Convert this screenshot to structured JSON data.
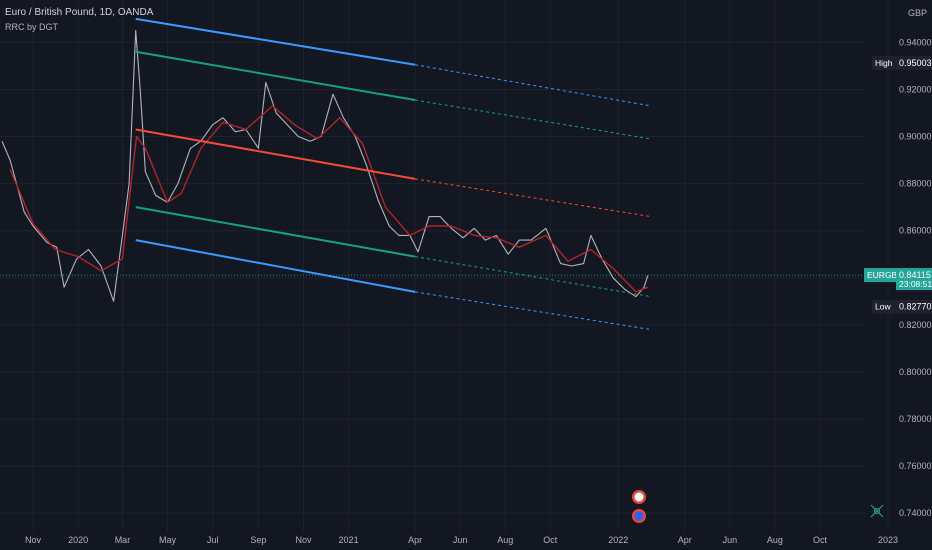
{
  "header": {
    "symbol_line": "Euro / British Pound, 1D, OANDA",
    "indicator_line": "RRC by DGT"
  },
  "chart_data": {
    "type": "line",
    "title": "Euro / British Pound, 1D, OANDA",
    "ylabel": "",
    "xlabel": "",
    "currency": "GBP",
    "ylim": [
      0.732,
      0.958
    ],
    "y_ticks": [
      "0.94000",
      "0.92000",
      "0.90000",
      "0.88000",
      "0.86000",
      "0.84000",
      "0.82000",
      "0.80000",
      "0.78000",
      "0.76000",
      "0.74000"
    ],
    "y_tick_values": [
      0.94,
      0.92,
      0.9,
      0.88,
      0.86,
      0.84,
      0.82,
      0.8,
      0.78,
      0.76,
      0.74
    ],
    "x_ticks": [
      "Nov",
      "2020",
      "Mar",
      "May",
      "Jul",
      "Sep",
      "Nov",
      "2021",
      "Apr",
      "Jun",
      "Aug",
      "Oct",
      "2022",
      "Apr",
      "Jun",
      "Aug",
      "Oct",
      "2023"
    ],
    "x_tick_dates": [
      "2019-11-01",
      "2020-01-01",
      "2020-03-01",
      "2020-05-01",
      "2020-07-01",
      "2020-09-01",
      "2020-11-01",
      "2021-01-01",
      "2021-04-01",
      "2021-06-01",
      "2021-08-01",
      "2021-10-01",
      "2022-01-01",
      "2022-04-01",
      "2022-06-01",
      "2022-08-01",
      "2022-10-01",
      "2023-01-01"
    ],
    "price_series": {
      "name": "EURGBP",
      "color": "#b2b5be",
      "points": [
        [
          "2019-09-20",
          0.898
        ],
        [
          "2019-10-01",
          0.89
        ],
        [
          "2019-10-20",
          0.868
        ],
        [
          "2019-11-01",
          0.862
        ],
        [
          "2019-11-20",
          0.855
        ],
        [
          "2019-12-03",
          0.853
        ],
        [
          "2019-12-13",
          0.836
        ],
        [
          "2019-12-30",
          0.848
        ],
        [
          "2020-01-15",
          0.852
        ],
        [
          "2020-02-01",
          0.845
        ],
        [
          "2020-02-18",
          0.83
        ],
        [
          "2020-03-01",
          0.858
        ],
        [
          "2020-03-10",
          0.88
        ],
        [
          "2020-03-19",
          0.945
        ],
        [
          "2020-03-25",
          0.92
        ],
        [
          "2020-04-01",
          0.885
        ],
        [
          "2020-04-15",
          0.875
        ],
        [
          "2020-05-01",
          0.872
        ],
        [
          "2020-05-15",
          0.88
        ],
        [
          "2020-06-01",
          0.895
        ],
        [
          "2020-06-15",
          0.898
        ],
        [
          "2020-07-01",
          0.905
        ],
        [
          "2020-07-15",
          0.908
        ],
        [
          "2020-08-01",
          0.902
        ],
        [
          "2020-08-15",
          0.903
        ],
        [
          "2020-09-01",
          0.895
        ],
        [
          "2020-09-11",
          0.923
        ],
        [
          "2020-09-25",
          0.91
        ],
        [
          "2020-10-10",
          0.905
        ],
        [
          "2020-10-25",
          0.9
        ],
        [
          "2020-11-10",
          0.898
        ],
        [
          "2020-11-25",
          0.9
        ],
        [
          "2020-12-11",
          0.918
        ],
        [
          "2020-12-25",
          0.908
        ],
        [
          "2021-01-10",
          0.9
        ],
        [
          "2021-01-25",
          0.888
        ],
        [
          "2021-02-10",
          0.873
        ],
        [
          "2021-02-25",
          0.862
        ],
        [
          "2021-03-10",
          0.858
        ],
        [
          "2021-03-25",
          0.858
        ],
        [
          "2021-04-05",
          0.851
        ],
        [
          "2021-04-20",
          0.866
        ],
        [
          "2021-05-05",
          0.866
        ],
        [
          "2021-05-20",
          0.861
        ],
        [
          "2021-06-05",
          0.857
        ],
        [
          "2021-06-20",
          0.861
        ],
        [
          "2021-07-05",
          0.856
        ],
        [
          "2021-07-20",
          0.858
        ],
        [
          "2021-08-05",
          0.85
        ],
        [
          "2021-08-20",
          0.856
        ],
        [
          "2021-09-05",
          0.856
        ],
        [
          "2021-09-25",
          0.861
        ],
        [
          "2021-10-15",
          0.846
        ],
        [
          "2021-10-30",
          0.845
        ],
        [
          "2021-11-15",
          0.846
        ],
        [
          "2021-11-25",
          0.858
        ],
        [
          "2021-12-10",
          0.848
        ],
        [
          "2021-12-25",
          0.84
        ],
        [
          "2022-01-10",
          0.835
        ],
        [
          "2022-01-25",
          0.832
        ],
        [
          "2022-02-05",
          0.836
        ],
        [
          "2022-02-10",
          0.841
        ]
      ]
    },
    "moving_average": {
      "color": "#b2242a",
      "points": [
        [
          "2019-10-01",
          0.886
        ],
        [
          "2019-11-01",
          0.863
        ],
        [
          "2019-12-01",
          0.852
        ],
        [
          "2020-01-01",
          0.849
        ],
        [
          "2020-02-01",
          0.843
        ],
        [
          "2020-03-01",
          0.848
        ],
        [
          "2020-03-20",
          0.9
        ],
        [
          "2020-04-01",
          0.895
        ],
        [
          "2020-05-01",
          0.872
        ],
        [
          "2020-05-20",
          0.876
        ],
        [
          "2020-06-15",
          0.895
        ],
        [
          "2020-07-15",
          0.906
        ],
        [
          "2020-08-15",
          0.903
        ],
        [
          "2020-09-20",
          0.913
        ],
        [
          "2020-10-20",
          0.905
        ],
        [
          "2020-11-20",
          0.899
        ],
        [
          "2020-12-20",
          0.908
        ],
        [
          "2021-01-20",
          0.897
        ],
        [
          "2021-02-20",
          0.87
        ],
        [
          "2021-03-25",
          0.858
        ],
        [
          "2021-04-20",
          0.862
        ],
        [
          "2021-05-20",
          0.862
        ],
        [
          "2021-06-20",
          0.858
        ],
        [
          "2021-07-20",
          0.857
        ],
        [
          "2021-08-20",
          0.853
        ],
        [
          "2021-09-25",
          0.858
        ],
        [
          "2021-10-25",
          0.847
        ],
        [
          "2021-11-25",
          0.852
        ],
        [
          "2021-12-25",
          0.844
        ],
        [
          "2022-01-25",
          0.834
        ],
        [
          "2022-02-10",
          0.836
        ]
      ]
    },
    "regression_channel": {
      "start_date": "2020-03-19",
      "solid_end_date": "2021-04-01",
      "extend_end_date": "2022-02-14",
      "lines": [
        {
          "role": "upper-outer",
          "color": "#3a9bff",
          "start": 0.95,
          "solid_end": 0.9305,
          "extend_end": 0.913
        },
        {
          "role": "upper-inner",
          "color": "#16a085",
          "start": 0.936,
          "solid_end": 0.9155,
          "extend_end": 0.899
        },
        {
          "role": "median",
          "color": "#f44a36",
          "start": 0.903,
          "solid_end": 0.882,
          "extend_end": 0.866
        },
        {
          "role": "lower-inner",
          "color": "#16a085",
          "start": 0.87,
          "solid_end": 0.849,
          "extend_end": 0.832
        },
        {
          "role": "lower-outer",
          "color": "#3a9bff",
          "start": 0.856,
          "solid_end": 0.834,
          "extend_end": 0.818
        }
      ]
    },
    "price_labels": {
      "high": {
        "label": "High",
        "value": "0.95003",
        "value_num": 0.95003
      },
      "current": {
        "label": "EURGBP",
        "value": "0.84115",
        "value_num": 0.84115,
        "countdown": "23:08:51",
        "color": "#26a69a"
      },
      "low": {
        "label": "Low",
        "value": "0.82770",
        "value_num": 0.8277
      }
    },
    "grid": true,
    "legend": "top-left"
  }
}
